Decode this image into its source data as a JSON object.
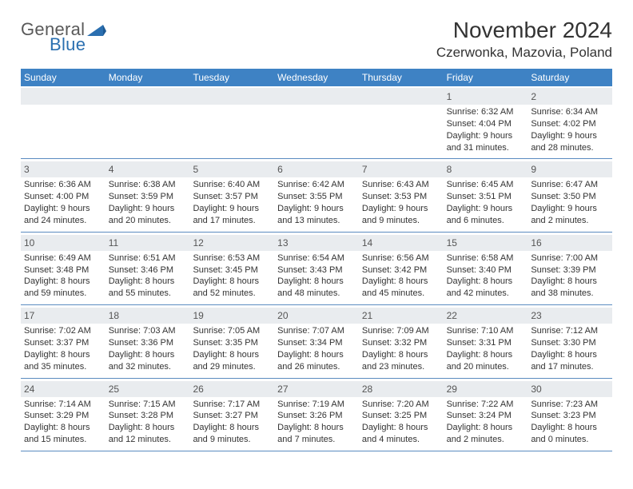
{
  "logo": {
    "word1": "General",
    "word2": "Blue",
    "triangle_color": "#2a6fb0",
    "word1_color": "#595959",
    "word2_color": "#2a6fb0"
  },
  "title": "November 2024",
  "location": "Czerwonka, Mazovia, Poland",
  "header_bg": "#3e82c4",
  "header_fg": "#ffffff",
  "strip_bg": "#e9ecef",
  "rule_color": "#5a8bc0",
  "text_color": "#333333",
  "daynum_color": "#555555",
  "days_of_week": [
    "Sunday",
    "Monday",
    "Tuesday",
    "Wednesday",
    "Thursday",
    "Friday",
    "Saturday"
  ],
  "weeks": [
    [
      null,
      null,
      null,
      null,
      null,
      {
        "n": "1",
        "sunrise": "Sunrise: 6:32 AM",
        "sunset": "Sunset: 4:04 PM",
        "dl1": "Daylight: 9 hours",
        "dl2": "and 31 minutes."
      },
      {
        "n": "2",
        "sunrise": "Sunrise: 6:34 AM",
        "sunset": "Sunset: 4:02 PM",
        "dl1": "Daylight: 9 hours",
        "dl2": "and 28 minutes."
      }
    ],
    [
      {
        "n": "3",
        "sunrise": "Sunrise: 6:36 AM",
        "sunset": "Sunset: 4:00 PM",
        "dl1": "Daylight: 9 hours",
        "dl2": "and 24 minutes."
      },
      {
        "n": "4",
        "sunrise": "Sunrise: 6:38 AM",
        "sunset": "Sunset: 3:59 PM",
        "dl1": "Daylight: 9 hours",
        "dl2": "and 20 minutes."
      },
      {
        "n": "5",
        "sunrise": "Sunrise: 6:40 AM",
        "sunset": "Sunset: 3:57 PM",
        "dl1": "Daylight: 9 hours",
        "dl2": "and 17 minutes."
      },
      {
        "n": "6",
        "sunrise": "Sunrise: 6:42 AM",
        "sunset": "Sunset: 3:55 PM",
        "dl1": "Daylight: 9 hours",
        "dl2": "and 13 minutes."
      },
      {
        "n": "7",
        "sunrise": "Sunrise: 6:43 AM",
        "sunset": "Sunset: 3:53 PM",
        "dl1": "Daylight: 9 hours",
        "dl2": "and 9 minutes."
      },
      {
        "n": "8",
        "sunrise": "Sunrise: 6:45 AM",
        "sunset": "Sunset: 3:51 PM",
        "dl1": "Daylight: 9 hours",
        "dl2": "and 6 minutes."
      },
      {
        "n": "9",
        "sunrise": "Sunrise: 6:47 AM",
        "sunset": "Sunset: 3:50 PM",
        "dl1": "Daylight: 9 hours",
        "dl2": "and 2 minutes."
      }
    ],
    [
      {
        "n": "10",
        "sunrise": "Sunrise: 6:49 AM",
        "sunset": "Sunset: 3:48 PM",
        "dl1": "Daylight: 8 hours",
        "dl2": "and 59 minutes."
      },
      {
        "n": "11",
        "sunrise": "Sunrise: 6:51 AM",
        "sunset": "Sunset: 3:46 PM",
        "dl1": "Daylight: 8 hours",
        "dl2": "and 55 minutes."
      },
      {
        "n": "12",
        "sunrise": "Sunrise: 6:53 AM",
        "sunset": "Sunset: 3:45 PM",
        "dl1": "Daylight: 8 hours",
        "dl2": "and 52 minutes."
      },
      {
        "n": "13",
        "sunrise": "Sunrise: 6:54 AM",
        "sunset": "Sunset: 3:43 PM",
        "dl1": "Daylight: 8 hours",
        "dl2": "and 48 minutes."
      },
      {
        "n": "14",
        "sunrise": "Sunrise: 6:56 AM",
        "sunset": "Sunset: 3:42 PM",
        "dl1": "Daylight: 8 hours",
        "dl2": "and 45 minutes."
      },
      {
        "n": "15",
        "sunrise": "Sunrise: 6:58 AM",
        "sunset": "Sunset: 3:40 PM",
        "dl1": "Daylight: 8 hours",
        "dl2": "and 42 minutes."
      },
      {
        "n": "16",
        "sunrise": "Sunrise: 7:00 AM",
        "sunset": "Sunset: 3:39 PM",
        "dl1": "Daylight: 8 hours",
        "dl2": "and 38 minutes."
      }
    ],
    [
      {
        "n": "17",
        "sunrise": "Sunrise: 7:02 AM",
        "sunset": "Sunset: 3:37 PM",
        "dl1": "Daylight: 8 hours",
        "dl2": "and 35 minutes."
      },
      {
        "n": "18",
        "sunrise": "Sunrise: 7:03 AM",
        "sunset": "Sunset: 3:36 PM",
        "dl1": "Daylight: 8 hours",
        "dl2": "and 32 minutes."
      },
      {
        "n": "19",
        "sunrise": "Sunrise: 7:05 AM",
        "sunset": "Sunset: 3:35 PM",
        "dl1": "Daylight: 8 hours",
        "dl2": "and 29 minutes."
      },
      {
        "n": "20",
        "sunrise": "Sunrise: 7:07 AM",
        "sunset": "Sunset: 3:34 PM",
        "dl1": "Daylight: 8 hours",
        "dl2": "and 26 minutes."
      },
      {
        "n": "21",
        "sunrise": "Sunrise: 7:09 AM",
        "sunset": "Sunset: 3:32 PM",
        "dl1": "Daylight: 8 hours",
        "dl2": "and 23 minutes."
      },
      {
        "n": "22",
        "sunrise": "Sunrise: 7:10 AM",
        "sunset": "Sunset: 3:31 PM",
        "dl1": "Daylight: 8 hours",
        "dl2": "and 20 minutes."
      },
      {
        "n": "23",
        "sunrise": "Sunrise: 7:12 AM",
        "sunset": "Sunset: 3:30 PM",
        "dl1": "Daylight: 8 hours",
        "dl2": "and 17 minutes."
      }
    ],
    [
      {
        "n": "24",
        "sunrise": "Sunrise: 7:14 AM",
        "sunset": "Sunset: 3:29 PM",
        "dl1": "Daylight: 8 hours",
        "dl2": "and 15 minutes."
      },
      {
        "n": "25",
        "sunrise": "Sunrise: 7:15 AM",
        "sunset": "Sunset: 3:28 PM",
        "dl1": "Daylight: 8 hours",
        "dl2": "and 12 minutes."
      },
      {
        "n": "26",
        "sunrise": "Sunrise: 7:17 AM",
        "sunset": "Sunset: 3:27 PM",
        "dl1": "Daylight: 8 hours",
        "dl2": "and 9 minutes."
      },
      {
        "n": "27",
        "sunrise": "Sunrise: 7:19 AM",
        "sunset": "Sunset: 3:26 PM",
        "dl1": "Daylight: 8 hours",
        "dl2": "and 7 minutes."
      },
      {
        "n": "28",
        "sunrise": "Sunrise: 7:20 AM",
        "sunset": "Sunset: 3:25 PM",
        "dl1": "Daylight: 8 hours",
        "dl2": "and 4 minutes."
      },
      {
        "n": "29",
        "sunrise": "Sunrise: 7:22 AM",
        "sunset": "Sunset: 3:24 PM",
        "dl1": "Daylight: 8 hours",
        "dl2": "and 2 minutes."
      },
      {
        "n": "30",
        "sunrise": "Sunrise: 7:23 AM",
        "sunset": "Sunset: 3:23 PM",
        "dl1": "Daylight: 8 hours",
        "dl2": "and 0 minutes."
      }
    ]
  ]
}
